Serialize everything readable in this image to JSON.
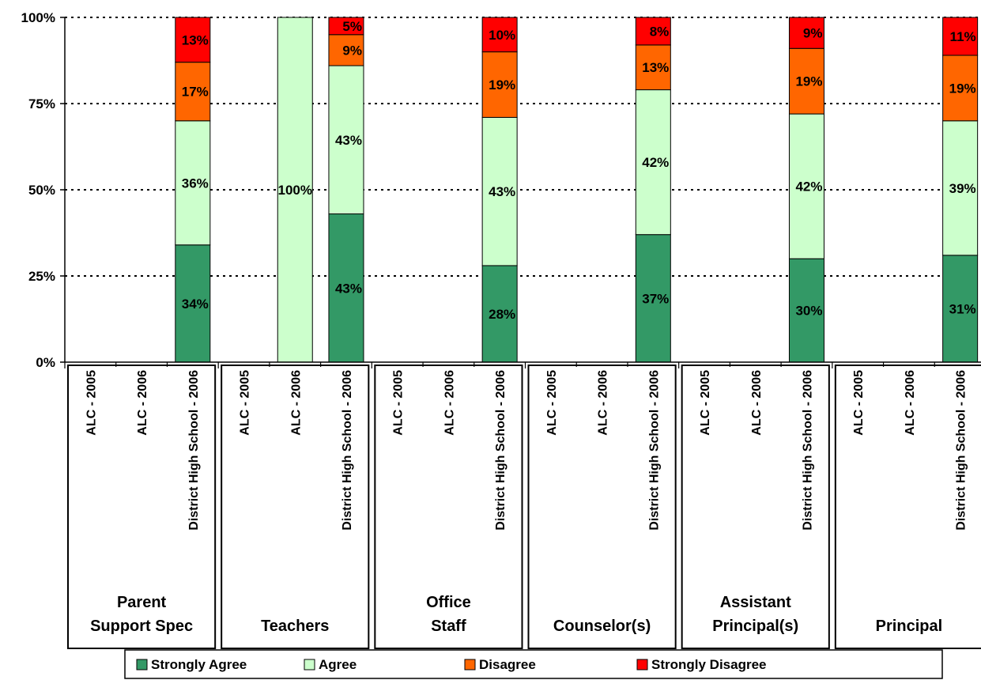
{
  "chart_data": {
    "type": "bar",
    "stacked": true,
    "title": "",
    "xlabel": "",
    "ylabel": "",
    "ylim": [
      0,
      100
    ],
    "y_ticks": [
      "0%",
      "25%",
      "50%",
      "75%",
      "100%"
    ],
    "grid": "horizontal dotted",
    "legend_position": "bottom",
    "categories": [
      "ALC - 2005",
      "ALC - 2006",
      "District High School - 2006"
    ],
    "groups": [
      {
        "name": "Parent\nSupport Spec",
        "bars": [
          null,
          null,
          {
            "values": [
              34,
              36,
              17,
              13
            ],
            "labels": [
              "34%",
              "36%",
              "17%",
              "13%"
            ]
          }
        ]
      },
      {
        "name": "Teachers",
        "bars": [
          null,
          {
            "values": [
              0,
              100,
              0,
              0
            ],
            "labels": [
              "",
              "100%",
              "",
              ""
            ]
          },
          {
            "values": [
              43,
              43,
              9,
              5
            ],
            "labels": [
              "43%",
              "43%",
              "9%",
              "5%"
            ]
          }
        ]
      },
      {
        "name": "Office\nStaff",
        "bars": [
          null,
          null,
          {
            "values": [
              28,
              43,
              19,
              10
            ],
            "labels": [
              "28%",
              "43%",
              "19%",
              "10%"
            ]
          }
        ]
      },
      {
        "name": "Counselor(s)",
        "bars": [
          null,
          null,
          {
            "values": [
              37,
              42,
              13,
              8
            ],
            "labels": [
              "37%",
              "42%",
              "13%",
              "8%"
            ]
          }
        ]
      },
      {
        "name": "Assistant\nPrincipal(s)",
        "bars": [
          null,
          null,
          {
            "values": [
              30,
              42,
              19,
              9
            ],
            "labels": [
              "30%",
              "42%",
              "19%",
              "9%"
            ]
          }
        ]
      },
      {
        "name": "Principal",
        "bars": [
          null,
          null,
          {
            "values": [
              31,
              39,
              19,
              11
            ],
            "labels": [
              "31%",
              "39%",
              "19%",
              "11%"
            ]
          }
        ]
      }
    ],
    "series": [
      {
        "name": "Strongly Agree",
        "color": "#339966"
      },
      {
        "name": "Agree",
        "color": "#ccffcc"
      },
      {
        "name": "Disagree",
        "color": "#ff6600"
      },
      {
        "name": "Strongly Disagree",
        "color": "#ff0000"
      }
    ]
  }
}
